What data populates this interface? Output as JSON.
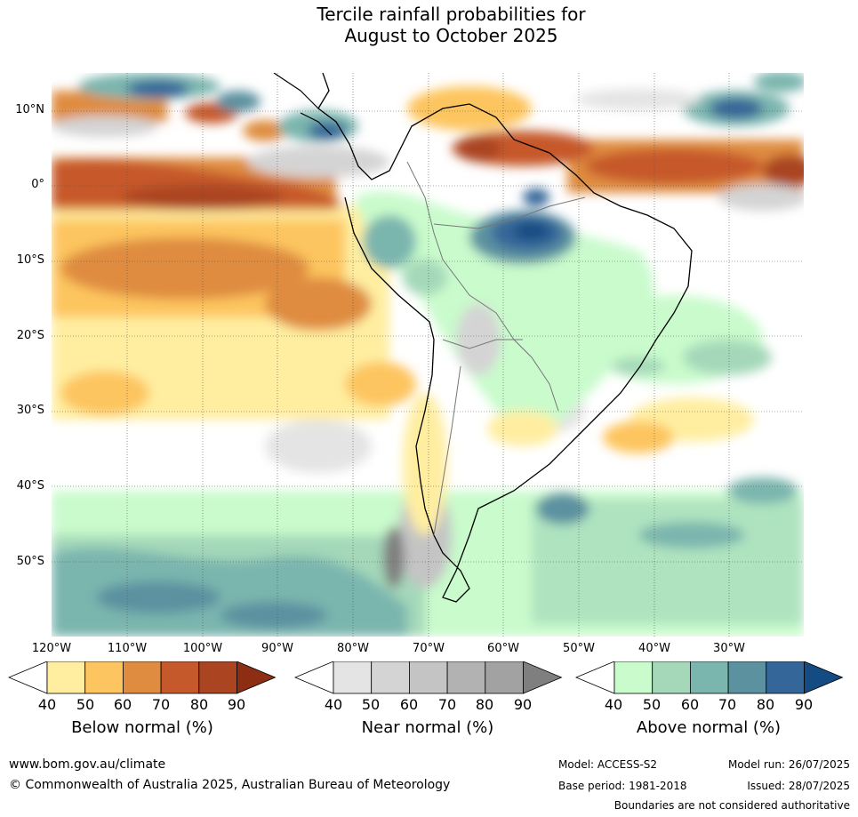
{
  "title_line1": "Tercile rainfall probabilities for",
  "title_line2": "August to October 2025",
  "lat_labels": [
    "10°N",
    "0°",
    "10°S",
    "20°S",
    "30°S",
    "40°S",
    "50°S"
  ],
  "lon_labels": [
    "120°W",
    "110°W",
    "100°W",
    "90°W",
    "80°W",
    "70°W",
    "60°W",
    "50°W",
    "40°W",
    "30°W"
  ],
  "colorbars": [
    {
      "title": "Below normal (%)",
      "ticks": [
        "40",
        "50",
        "60",
        "70",
        "80",
        "90"
      ],
      "colors": [
        "#ffeea0",
        "#fdc55f",
        "#df8c41",
        "#c6592b",
        "#aa4421",
        "#8c2d14"
      ]
    },
    {
      "title": "Near normal (%)",
      "ticks": [
        "40",
        "50",
        "60",
        "70",
        "80",
        "90"
      ],
      "colors": [
        "#e4e4e4",
        "#d4d4d4",
        "#c4c4c4",
        "#b2b2b2",
        "#a2a2a2",
        "#7f7f7f"
      ]
    },
    {
      "title": "Above normal (%)",
      "ticks": [
        "40",
        "50",
        "60",
        "70",
        "80",
        "90"
      ],
      "colors": [
        "#c9fbcc",
        "#a4d8b9",
        "#7ab5ae",
        "#5c91a0",
        "#346699",
        "#144b82"
      ]
    }
  ],
  "footer": {
    "website": "www.bom.gov.au/climate",
    "copyright": "© Commonwealth of Australia 2025, Australian Bureau of Meteorology",
    "model": "Model: ACCESS-S2",
    "base_period": "Base period: 1981-2018",
    "model_run": "Model run: 26/07/2025",
    "issued": "Issued: 28/07/2025",
    "disclaimer": "Boundaries are not considered authoritative"
  }
}
